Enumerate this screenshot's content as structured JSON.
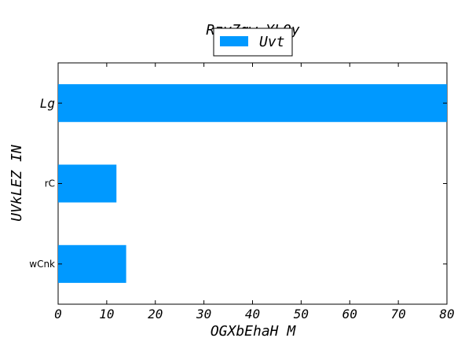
{
  "chart_data": {
    "type": "bar",
    "orientation": "horizontal",
    "title": "RzyZgw YLQy",
    "xlabel": "OGXbEhaH M",
    "ylabel": "UVkLEZ IN",
    "categories": [
      "wCnk",
      "rC",
      "Lg"
    ],
    "series": [
      {
        "name": "Uvt",
        "values": [
          14,
          12,
          80
        ]
      }
    ],
    "xlim": [
      0,
      80
    ],
    "xticks": [
      "0",
      "10",
      "20",
      "30",
      "40",
      "50",
      "60",
      "70",
      "80"
    ],
    "grid": false,
    "legend_position": "top-center",
    "bar_color": "#0099ff"
  }
}
